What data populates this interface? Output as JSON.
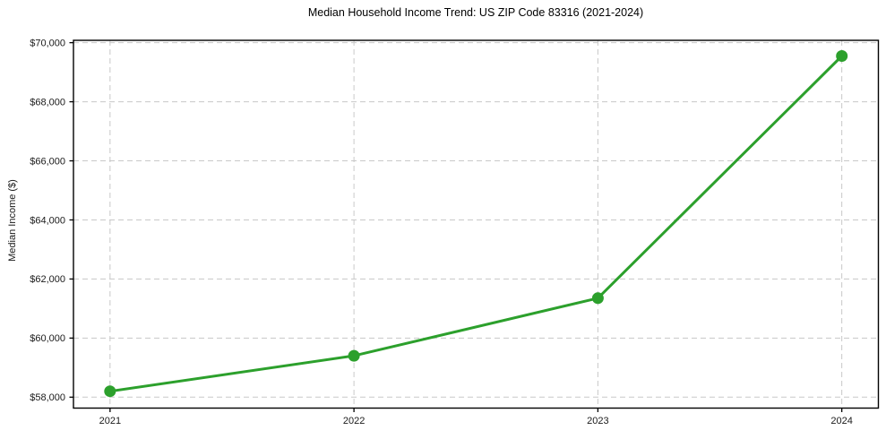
{
  "chart_data": {
    "type": "line",
    "title": "Median Household Income Trend: US ZIP Code 83316 (2021-2024)",
    "xlabel": "",
    "ylabel": "Median Income ($)",
    "x": [
      2021,
      2022,
      2023,
      2024
    ],
    "values": [
      58200,
      59400,
      61350,
      69550
    ],
    "xtick_labels": [
      "2021",
      "2022",
      "2023",
      "2024"
    ],
    "yticks": [
      58000,
      60000,
      62000,
      64000,
      66000,
      68000,
      70000
    ],
    "ytick_labels": [
      "$58,000",
      "$60,000",
      "$62,000",
      "$64,000",
      "$66,000",
      "$68,000",
      "$70,000"
    ],
    "xlim": [
      2020.85,
      2024.15
    ],
    "ylim": [
      57630,
      70080
    ],
    "grid": true,
    "grid_style": "dashed",
    "legend": false,
    "marker": "circle",
    "colors": {
      "line": "#2ca02c",
      "marker": "#2ca02c",
      "grid": "#c8c8c8",
      "axis": "#000000",
      "tick_text": "#1a1a1a",
      "title_text": "#000000",
      "background": "#ffffff"
    }
  }
}
